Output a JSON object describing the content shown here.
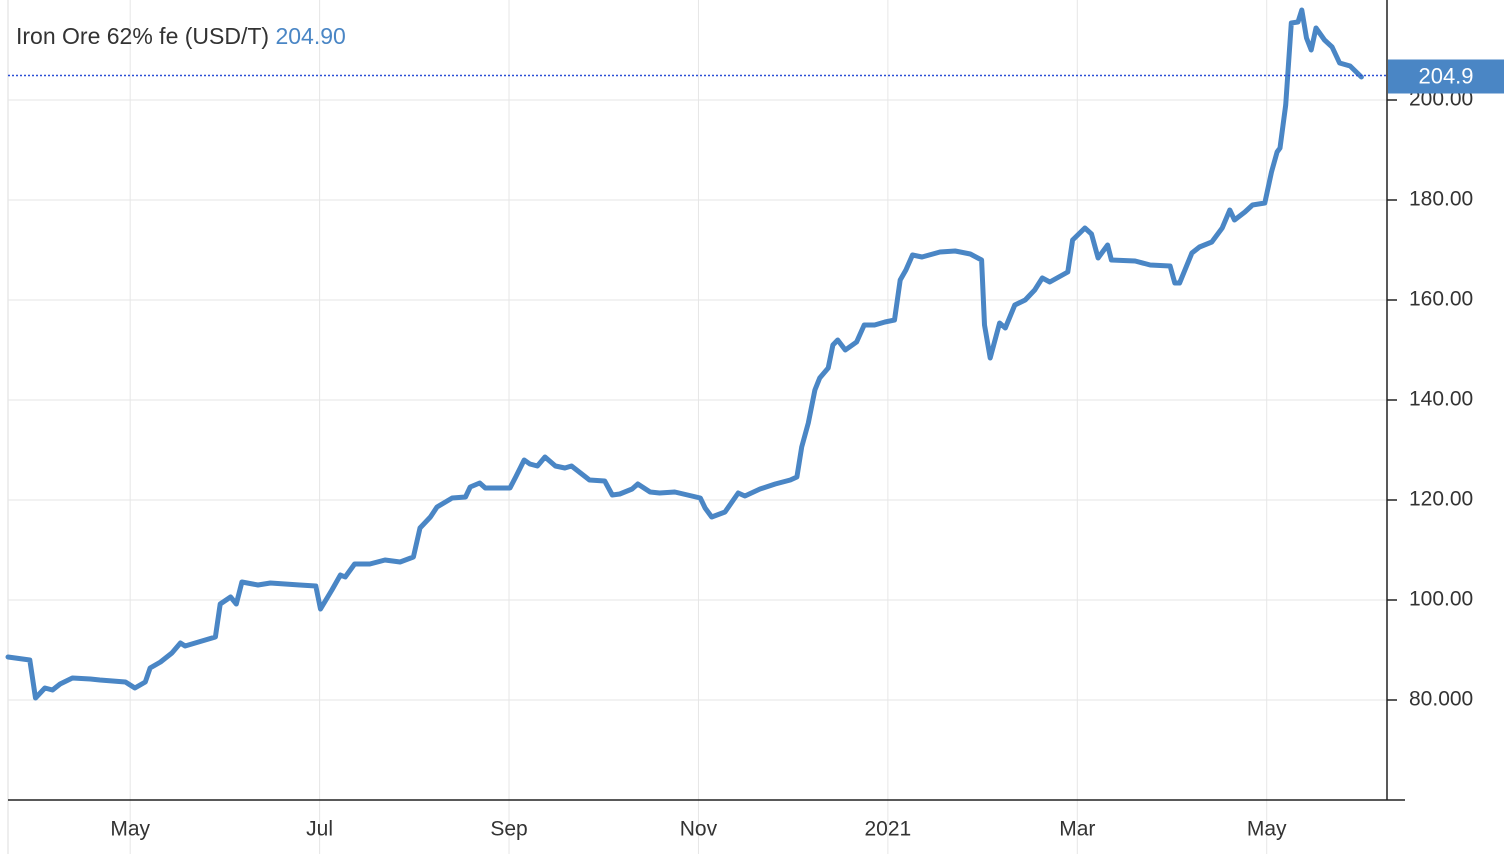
{
  "chart_data": {
    "type": "line",
    "title": "Iron Ore 62% fe (USD/T)",
    "title_value_label": "204.90",
    "current_value": 204.9,
    "current_value_label": "204.9",
    "color": "#4a86c5",
    "grid": true,
    "xlim": [
      2.71,
      17.27
    ],
    "xticks": [
      {
        "value": 4,
        "label": "May"
      },
      {
        "value": 6,
        "label": "Jul"
      },
      {
        "value": 8,
        "label": "Sep"
      },
      {
        "value": 10,
        "label": "Nov"
      },
      {
        "value": 12,
        "label": "2021"
      },
      {
        "value": 14,
        "label": "Mar"
      },
      {
        "value": 16,
        "label": "May"
      }
    ],
    "ylim": [
      60,
      220
    ],
    "yticks": [
      {
        "value": 80,
        "label": "80.000"
      },
      {
        "value": 100,
        "label": "100.00"
      },
      {
        "value": 120,
        "label": "120.00"
      },
      {
        "value": 140,
        "label": "140.00"
      },
      {
        "value": 160,
        "label": "160.00"
      },
      {
        "value": 180,
        "label": "180.00"
      },
      {
        "value": 200,
        "label": "200.00"
      }
    ],
    "x": [
      2.71,
      2.94,
      3.0,
      3.1,
      3.18,
      3.26,
      3.39,
      3.58,
      3.68,
      3.95,
      4.05,
      4.16,
      4.21,
      4.32,
      4.44,
      4.53,
      4.58,
      4.9,
      4.95,
      5.06,
      5.12,
      5.18,
      5.35,
      5.48,
      5.79,
      5.96,
      6.01,
      6.13,
      6.22,
      6.27,
      6.37,
      6.53,
      6.69,
      6.85,
      6.99,
      7.06,
      7.17,
      7.24,
      7.4,
      7.54,
      7.59,
      7.69,
      7.75,
      8.01,
      8.07,
      8.16,
      8.22,
      8.3,
      8.38,
      8.49,
      8.59,
      8.66,
      8.85,
      9.01,
      9.09,
      9.17,
      9.3,
      9.36,
      9.49,
      9.59,
      9.75,
      10.02,
      10.07,
      10.14,
      10.28,
      10.42,
      10.49,
      10.65,
      10.81,
      10.97,
      11.04,
      11.09,
      11.16,
      11.23,
      11.28,
      11.37,
      11.42,
      11.47,
      11.55,
      11.67,
      11.75,
      11.86,
      11.97,
      12.07,
      12.13,
      12.19,
      12.26,
      12.36,
      12.55,
      12.71,
      12.87,
      12.99,
      13.02,
      13.08,
      13.18,
      13.24,
      13.34,
      13.45,
      13.55,
      13.63,
      13.71,
      13.9,
      13.95,
      14.08,
      14.15,
      14.22,
      14.32,
      14.36,
      14.61,
      14.77,
      14.98,
      15.03,
      15.08,
      15.21,
      15.29,
      15.42,
      15.53,
      15.61,
      15.66,
      15.77,
      15.85,
      15.98,
      16.05,
      16.11,
      16.14,
      16.2,
      16.26,
      16.33,
      16.37,
      16.42,
      16.47,
      16.52,
      16.61,
      16.69,
      16.77,
      16.88,
      17.0
    ],
    "values": [
      88.6,
      88,
      80.4,
      82.4,
      82,
      83.2,
      84.4,
      84.2,
      84,
      83.6,
      82.4,
      83.6,
      86.4,
      87.6,
      89.4,
      91.4,
      90.8,
      92.6,
      99.2,
      100.6,
      99.2,
      103.6,
      103,
      103.4,
      103,
      102.8,
      98.2,
      102,
      105,
      104.6,
      107.2,
      107.2,
      108,
      107.6,
      108.6,
      114.4,
      116.6,
      118.6,
      120.4,
      120.6,
      122.6,
      123.4,
      122.4,
      122.4,
      124.6,
      128,
      127.2,
      126.8,
      128.6,
      126.8,
      126.4,
      126.8,
      124,
      123.8,
      121,
      121.2,
      122.2,
      123.2,
      121.6,
      121.4,
      121.6,
      120.4,
      118.4,
      116.6,
      117.6,
      121.4,
      120.8,
      122.2,
      123.2,
      124,
      124.6,
      130.6,
      135.4,
      142,
      144.4,
      146.4,
      151,
      152,
      150,
      151.6,
      155,
      155,
      155.6,
      156,
      164,
      166,
      169,
      168.6,
      169.6,
      169.8,
      169.2,
      168,
      155,
      148.4,
      155.4,
      154.4,
      159,
      160,
      162,
      164.4,
      163.6,
      165.6,
      172,
      174.4,
      173.2,
      168.4,
      171,
      168,
      167.8,
      167,
      166.8,
      163.4,
      163.4,
      169.4,
      170.6,
      171.6,
      174.4,
      178,
      176,
      177.6,
      179,
      179.4,
      185.6,
      189.6,
      190.4,
      199,
      215.4,
      215.6,
      218,
      212.4,
      210,
      214.4,
      212,
      210.6,
      207.4,
      206.8,
      204.6
    ]
  }
}
